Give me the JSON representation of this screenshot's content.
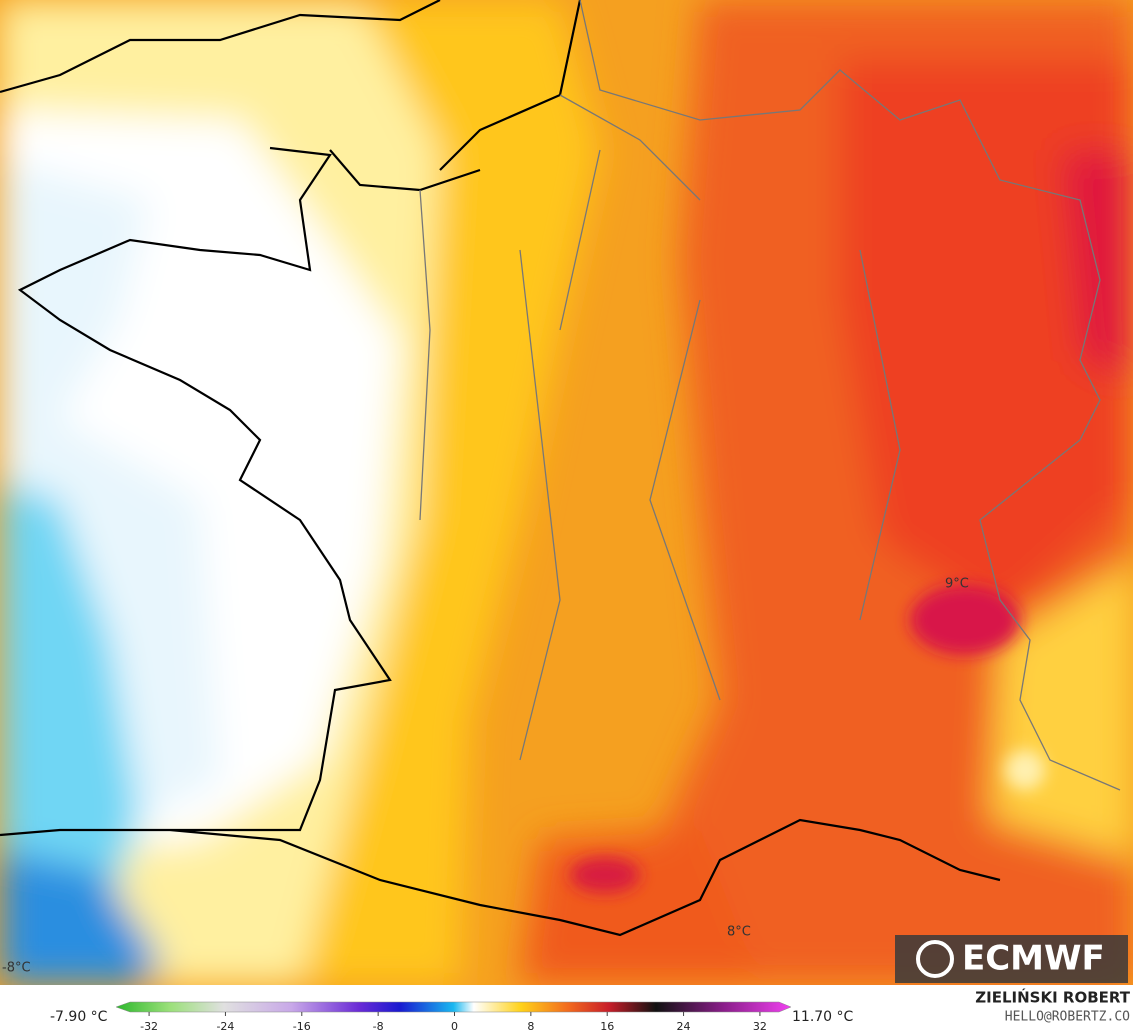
{
  "map": {
    "min_label": "-7.90 °C",
    "max_label": "11.70 °C",
    "contour_labels": [
      "9°C",
      "8°C",
      "-8°C"
    ],
    "colorbar": {
      "lim": [
        -34,
        34
      ],
      "ticks": [
        -32,
        -24,
        -16,
        -8,
        0,
        8,
        16,
        24,
        32
      ]
    },
    "logo": "ECMWF",
    "author": "ZIELIŃSKI ROBERT",
    "contact": "HELLO@ROBERTZ.CO"
  }
}
